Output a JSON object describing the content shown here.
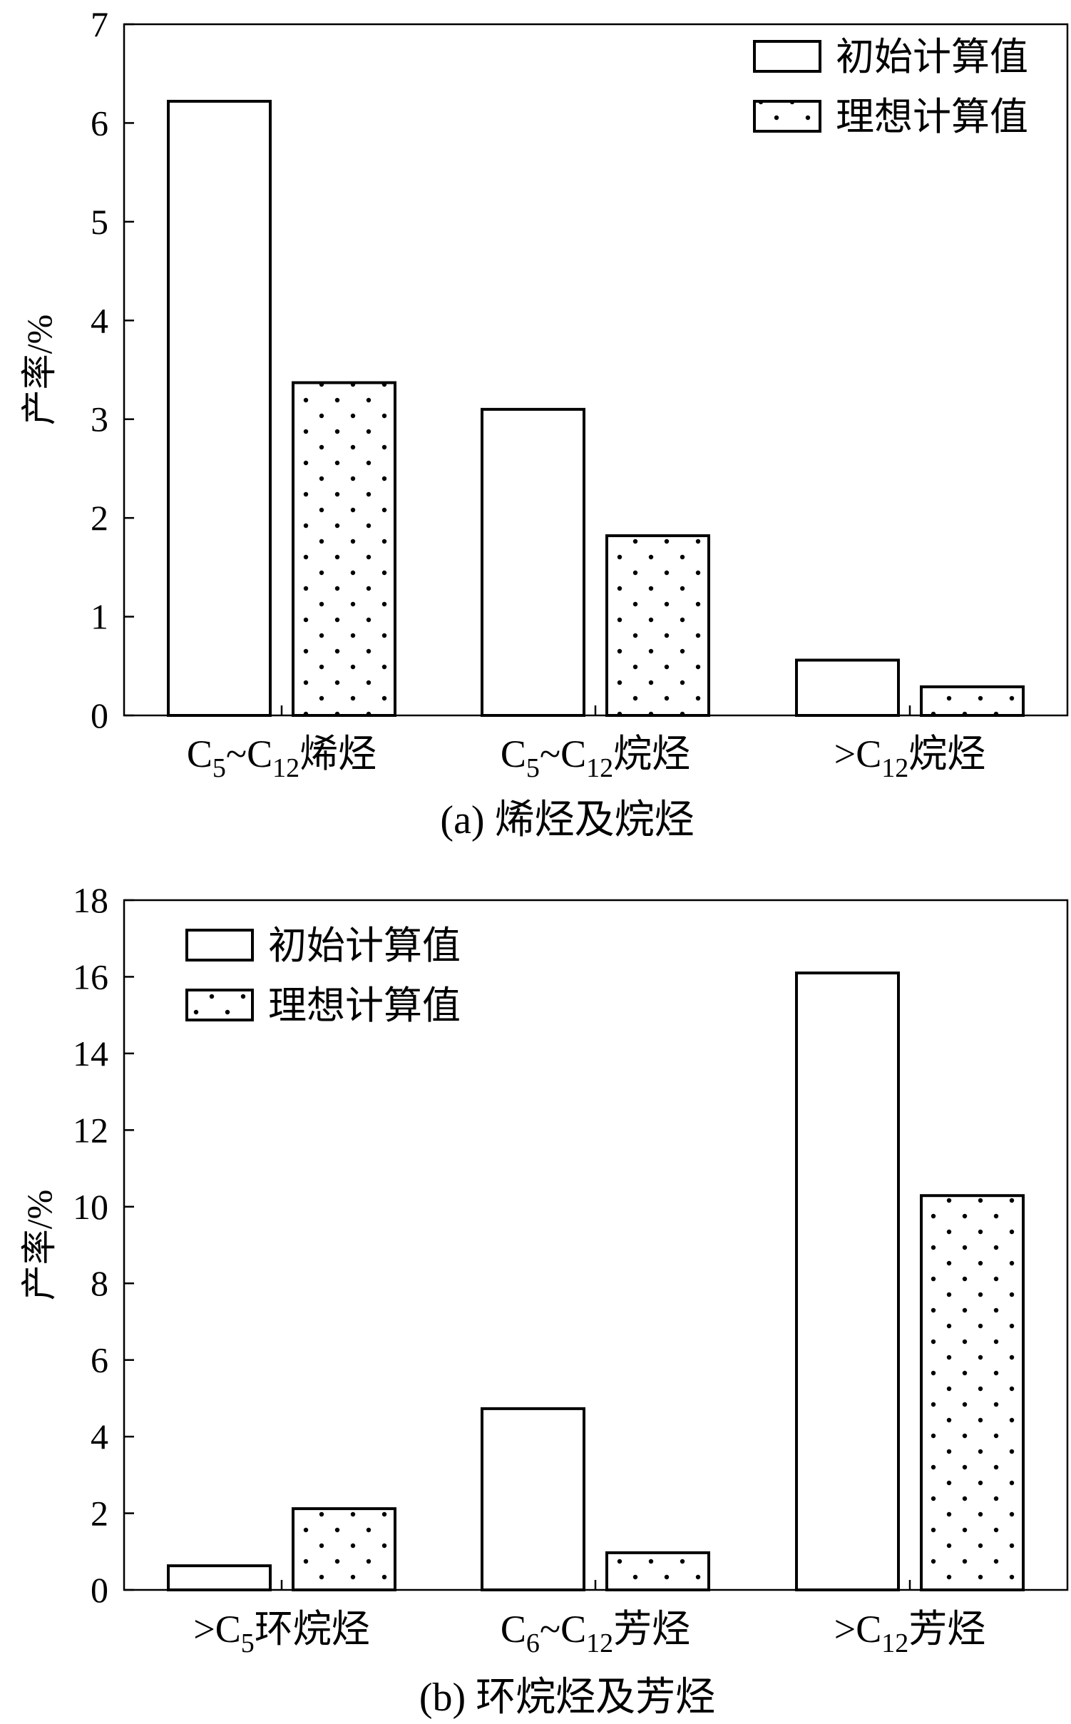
{
  "chart_data": [
    {
      "type": "bar",
      "title": "(a) 烯烃及烷烃",
      "ylabel": "产率/%",
      "xlabel": "",
      "ylim": [
        0,
        7
      ],
      "yticks": [
        0,
        1,
        2,
        3,
        4,
        5,
        6,
        7
      ],
      "grid": false,
      "legend_position": "top-right",
      "categories": [
        [
          {
            "t": "C"
          },
          {
            "t": "5",
            "sub": true
          },
          {
            "t": "~C"
          },
          {
            "t": "12",
            "sub": true
          },
          {
            "t": "烯烃"
          }
        ],
        [
          {
            "t": "C"
          },
          {
            "t": "5",
            "sub": true
          },
          {
            "t": "~C"
          },
          {
            "t": "12",
            "sub": true
          },
          {
            "t": "烷烃"
          }
        ],
        [
          {
            "t": ">C"
          },
          {
            "t": "12",
            "sub": true
          },
          {
            "t": "烷烃"
          }
        ]
      ],
      "series": [
        {
          "name": "初始计算值",
          "pattern": "none",
          "values": [
            6.22,
            3.1,
            0.56
          ]
        },
        {
          "name": "理想计算值",
          "pattern": "dots",
          "values": [
            3.37,
            1.82,
            0.29
          ]
        }
      ]
    },
    {
      "type": "bar",
      "title": "(b) 环烷烃及芳烃",
      "ylabel": "产率/%",
      "xlabel": "",
      "ylim": [
        0,
        18
      ],
      "yticks": [
        0,
        2,
        4,
        6,
        8,
        10,
        12,
        14,
        16,
        18
      ],
      "grid": false,
      "legend_position": "top-left",
      "categories": [
        [
          {
            "t": ">C"
          },
          {
            "t": "5",
            "sub": true
          },
          {
            "t": "环烷烃"
          }
        ],
        [
          {
            "t": "C"
          },
          {
            "t": "6",
            "sub": true
          },
          {
            "t": "~C"
          },
          {
            "t": "12",
            "sub": true
          },
          {
            "t": "芳烃"
          }
        ],
        [
          {
            "t": ">C"
          },
          {
            "t": "12",
            "sub": true
          },
          {
            "t": "芳烃"
          }
        ]
      ],
      "series": [
        {
          "name": "初始计算值",
          "pattern": "none",
          "values": [
            0.63,
            4.73,
            16.1
          ]
        },
        {
          "name": "理想计算值",
          "pattern": "dots",
          "values": [
            2.12,
            0.97,
            10.29
          ]
        }
      ]
    }
  ]
}
